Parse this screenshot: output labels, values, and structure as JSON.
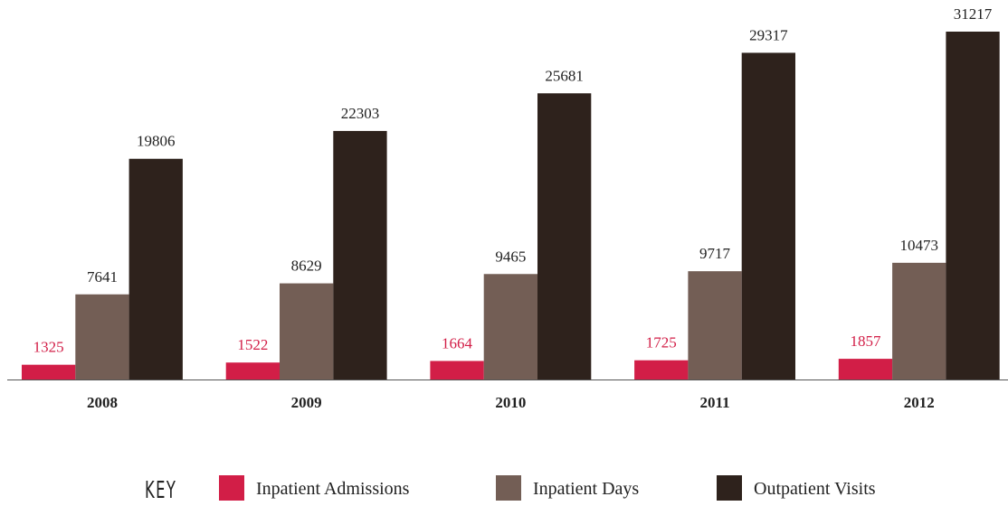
{
  "chart_data": {
    "type": "bar",
    "categories": [
      "2008",
      "2009",
      "2010",
      "2011",
      "2012"
    ],
    "series": [
      {
        "name": "Inpatient Admissions",
        "color": "#d21e47",
        "values": [
          1325,
          1522,
          1664,
          1725,
          1857
        ]
      },
      {
        "name": "Inpatient Days",
        "color": "#735e55",
        "values": [
          7641,
          8629,
          9465,
          9717,
          10473
        ]
      },
      {
        "name": "Outpatient Visits",
        "color": "#2e221c",
        "values": [
          19806,
          22303,
          25681,
          29317,
          31217
        ]
      }
    ],
    "legend_title": "KEY",
    "legend": "bottom"
  }
}
